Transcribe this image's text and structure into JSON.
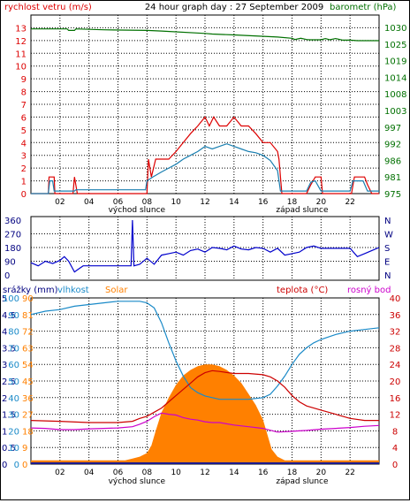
{
  "colors": {
    "wind_gust": "#dd0000",
    "wind_avg": "#1a7fb0",
    "pressure": "#007000",
    "direction": "#0000cc",
    "precip": "#000080",
    "humidity": "#1a8ac8",
    "solar": "#ff8000",
    "temperature": "#cc0000",
    "dewpoint": "#cc00cc",
    "grid": "#000000",
    "baseline": "#1a1a90"
  },
  "chart_data": [
    {
      "type": "line",
      "title": "24 hour graph day : 27 September 2009",
      "left_label": "rychlost vetru (m/s)",
      "right_label": "barometr (hPa)",
      "x_ticks": [
        "02",
        "04",
        "06",
        "08",
        "10",
        "12",
        "14",
        "16",
        "18",
        "20",
        "22"
      ],
      "markers": [
        "východ slunce",
        "západ slunce"
      ],
      "ylim_left": [
        0,
        14
      ],
      "yticks_left": [
        "0",
        "1",
        "2",
        "3",
        "4",
        "5",
        "6",
        "7",
        "8",
        "9",
        "10",
        "11",
        "12",
        "13"
      ],
      "yticks_right": [
        "975",
        "981",
        "986",
        "992",
        "997",
        "1003",
        "1008",
        "1014",
        "1019",
        "1025",
        "1030"
      ],
      "series": [
        {
          "name": "rychlost vetru",
          "role": "gust",
          "x": [
            0,
            1.2,
            1.25,
            1.3,
            1.6,
            1.65,
            2.9,
            3.0,
            3.2,
            7.0,
            8.0,
            8.1,
            8.3,
            8.6,
            9.0,
            9.5,
            10.0,
            10.5,
            11.0,
            11.5,
            12.0,
            12.3,
            12.6,
            13.0,
            13.5,
            14.0,
            14.5,
            15.0,
            15.5,
            16.0,
            16.5,
            17.0,
            17.1,
            17.3,
            17.5,
            19.0,
            19.3,
            19.6,
            20.0,
            20.1,
            22.1,
            22.3,
            22.5,
            23.0,
            23.2,
            23.5,
            24.0
          ],
          "values": [
            0,
            0,
            1.3,
            1.3,
            1.3,
            0,
            0,
            1.3,
            0,
            0,
            0,
            2.7,
            1.3,
            2.7,
            2.7,
            2.7,
            3.3,
            4.0,
            4.7,
            5.3,
            6.0,
            5.3,
            6.0,
            5.3,
            5.3,
            6.0,
            5.3,
            5.3,
            4.7,
            4.0,
            4.0,
            3.3,
            2.7,
            0,
            0,
            0,
            0.7,
            1.3,
            1.3,
            0,
            0,
            1.3,
            1.3,
            1.3,
            0.7,
            0,
            0
          ]
        },
        {
          "name": "rychlost vetru",
          "role": "average",
          "x": [
            0,
            1.2,
            1.3,
            1.5,
            1.6,
            3.0,
            3.1,
            7.9,
            8.0,
            8.4,
            9.0,
            9.5,
            10.0,
            10.5,
            11.0,
            11.5,
            12.0,
            12.5,
            13.0,
            13.5,
            14.0,
            14.5,
            15.0,
            15.5,
            16.0,
            16.5,
            17.0,
            17.2,
            19.0,
            19.3,
            19.6,
            20.0,
            22.0,
            22.2,
            22.5,
            22.9,
            23.2,
            24.0
          ],
          "values": [
            0,
            0,
            1.0,
            1.0,
            0.2,
            0.2,
            0.3,
            0.3,
            1.0,
            1.3,
            1.7,
            2.0,
            2.3,
            2.7,
            3.0,
            3.3,
            3.7,
            3.5,
            3.7,
            3.9,
            3.7,
            3.5,
            3.3,
            3.2,
            3.0,
            2.6,
            1.8,
            0.2,
            0.2,
            0.9,
            1.0,
            0.2,
            0.2,
            1.0,
            1.0,
            1.0,
            0.2,
            0.2
          ]
        },
        {
          "name": "barometr",
          "role": "pressure",
          "x": [
            0,
            2.5,
            2.6,
            3.0,
            3.1,
            5.0,
            8.0,
            9.0,
            12.0,
            12.5,
            14.0,
            17.0,
            18.0,
            18.2,
            18.6,
            19.0,
            19.2,
            20.0,
            20.3,
            20.6,
            21.0,
            21.5,
            22.0,
            22.5,
            24.0
          ],
          "values": [
            1029.5,
            1029.5,
            1029.0,
            1029.0,
            1029.5,
            1029.2,
            1029.0,
            1028.8,
            1028.0,
            1027.8,
            1027.5,
            1026.8,
            1026.4,
            1026.0,
            1026.4,
            1026.0,
            1025.9,
            1025.9,
            1026.3,
            1025.9,
            1026.3,
            1025.8,
            1025.8,
            1025.6,
            1025.6
          ]
        }
      ]
    },
    {
      "type": "scatter",
      "yticks_left": [
        "360",
        "270",
        "180",
        "90",
        "0"
      ],
      "yticks_right": [
        "N",
        "W",
        "S",
        "E",
        "N"
      ],
      "ylim": [
        0,
        360
      ],
      "series": [
        {
          "name": "direction",
          "x": [
            0,
            0.5,
            1.0,
            1.5,
            2.0,
            2.3,
            2.6,
            3.0,
            3.3,
            3.6,
            4.0,
            5.0,
            6.0,
            6.9,
            7.0,
            7.1,
            7.5,
            8.0,
            8.5,
            9.0,
            9.5,
            10.0,
            10.5,
            11.0,
            11.5,
            12.0,
            12.5,
            13.0,
            13.5,
            14.0,
            14.5,
            15.0,
            15.5,
            16.0,
            16.5,
            17.0,
            17.5,
            18.0,
            18.5,
            19.0,
            19.5,
            20.0,
            21.0,
            22.0,
            22.5,
            23.0,
            23.5,
            24.0
          ],
          "values": [
            80,
            60,
            90,
            75,
            95,
            120,
            90,
            20,
            40,
            60,
            60,
            60,
            60,
            60,
            360,
            60,
            70,
            110,
            70,
            130,
            140,
            150,
            130,
            160,
            170,
            150,
            180,
            175,
            165,
            190,
            170,
            165,
            180,
            175,
            150,
            175,
            130,
            140,
            150,
            180,
            190,
            175,
            175,
            175,
            120,
            140,
            160,
            180
          ]
        }
      ]
    },
    {
      "type": "area",
      "left_labels": [
        "srážky (mm)",
        "vlhkost",
        "Solar"
      ],
      "right_labels": [
        "teplota (°C)",
        "rosný bod"
      ],
      "markers": [
        "východ slunce",
        "západ slunce"
      ],
      "x_ticks": [
        "02",
        "04",
        "06",
        "08",
        "10",
        "12",
        "14",
        "16",
        "18",
        "20",
        "22"
      ],
      "yticks_precip": [
        "0",
        "0.5",
        "1",
        "1.5",
        "2",
        "2.5",
        "3",
        "3.5",
        "4",
        "4.5",
        "5"
      ],
      "yticks_humidity": [
        "0",
        "10",
        "20",
        "30",
        "40",
        "50",
        "60",
        "70",
        "80",
        "90",
        "100"
      ],
      "yticks_solar": [
        "0",
        "9",
        "18",
        "27",
        "36",
        "45",
        "54",
        "63",
        "72",
        "81",
        "90"
      ],
      "yticks_temp": [
        "0",
        "4",
        "8",
        "12",
        "16",
        "20",
        "24",
        "28",
        "32",
        "36",
        "40"
      ],
      "ylim_temp": [
        0,
        40
      ],
      "ylim_humidity": [
        0,
        100
      ],
      "ylim_solar": [
        0,
        90
      ],
      "series": [
        {
          "name": "vlhkost",
          "x": [
            0,
            1,
            2,
            3,
            4,
            5,
            6,
            7,
            7.5,
            8.0,
            8.5,
            9.0,
            9.5,
            10.0,
            10.5,
            11.0,
            11.5,
            12.0,
            13.0,
            14.0,
            15.0,
            16.0,
            16.5,
            17.0,
            17.5,
            18.0,
            18.5,
            19.0,
            19.5,
            20.0,
            21.0,
            22.0,
            23.0,
            24.0
          ],
          "values": [
            90,
            92,
            93,
            95,
            96,
            97,
            98,
            98,
            98,
            97,
            94,
            85,
            73,
            62,
            53,
            46,
            43,
            41,
            39,
            39,
            39,
            40,
            42,
            47,
            53,
            60,
            66,
            70,
            73,
            75,
            78,
            80,
            81,
            82
          ]
        },
        {
          "name": "Solar",
          "x": [
            0,
            6.0,
            6.5,
            7.0,
            7.5,
            8.0,
            8.3,
            8.6,
            9.0,
            9.5,
            10.0,
            10.5,
            11.0,
            11.5,
            12.0,
            12.5,
            13.0,
            13.5,
            14.0,
            14.5,
            15.0,
            15.5,
            16.0,
            16.3,
            16.6,
            17.0,
            17.5,
            18.0,
            24.0
          ],
          "values": [
            2,
            2,
            2,
            3,
            4,
            6,
            10,
            18,
            28,
            36,
            43,
            48,
            51,
            53,
            54,
            54,
            53,
            51,
            48,
            44,
            38,
            32,
            24,
            16,
            8,
            4,
            2,
            2,
            2
          ]
        },
        {
          "name": "teplota",
          "x": [
            0,
            2,
            4,
            6,
            7,
            7.5,
            8,
            8.5,
            9,
            9.5,
            10,
            10.5,
            11,
            11.5,
            12,
            12.5,
            13,
            14,
            15,
            16,
            16.5,
            17,
            17.5,
            18,
            18.5,
            19,
            20,
            21,
            22,
            23,
            24
          ],
          "values": [
            10.5,
            10.3,
            10.0,
            10.0,
            10.3,
            11.0,
            11.5,
            12.5,
            13.5,
            15.0,
            16.5,
            18.0,
            19.5,
            21.0,
            22.0,
            22.5,
            22.3,
            21.8,
            21.8,
            21.5,
            21.0,
            20.0,
            18.5,
            16.5,
            15.0,
            14.0,
            13.0,
            12.0,
            11.0,
            10.5,
            10.5
          ]
        },
        {
          "name": "rosný bod",
          "x": [
            0,
            1,
            2,
            3,
            4,
            5,
            6,
            7,
            7.5,
            8,
            8.5,
            9,
            9.5,
            10,
            10.5,
            11,
            11.5,
            12,
            12.5,
            13,
            14,
            15,
            16,
            17,
            18,
            19,
            20,
            21,
            22,
            23,
            24
          ],
          "values": [
            8.7,
            8.6,
            8.3,
            8.3,
            8.5,
            8.6,
            8.7,
            9.0,
            9.6,
            10.3,
            11.4,
            12.3,
            12.0,
            11.8,
            11.2,
            10.8,
            10.6,
            10.2,
            10.0,
            10.0,
            9.4,
            9.0,
            8.6,
            7.7,
            7.9,
            8.1,
            8.4,
            8.6,
            8.8,
            9.1,
            9.3
          ]
        }
      ]
    }
  ]
}
